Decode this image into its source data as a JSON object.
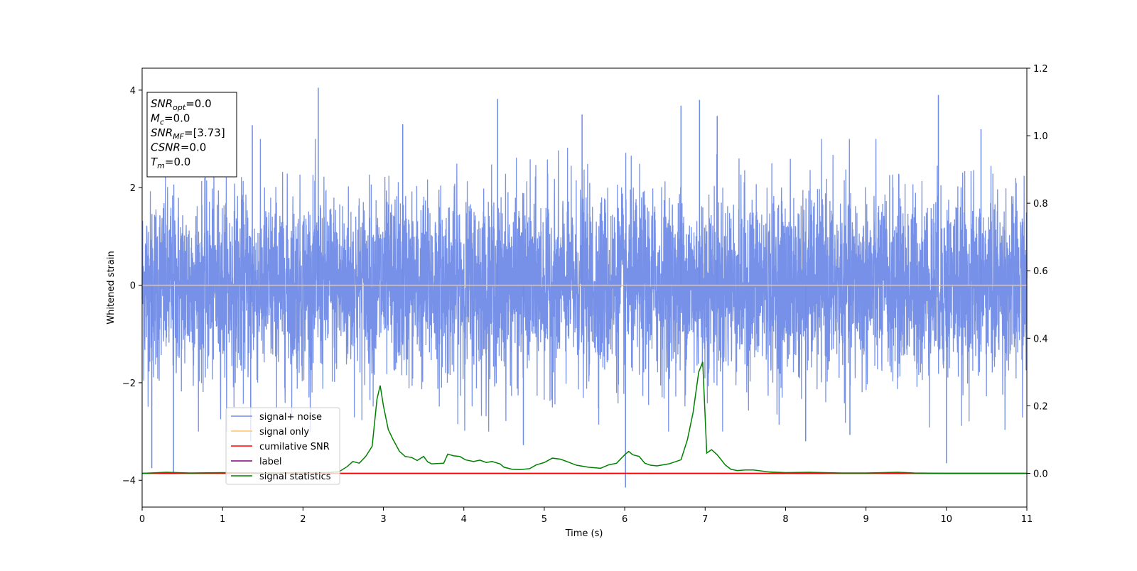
{
  "chart_data": {
    "type": "line",
    "xlabel": "Time (s)",
    "ylabel_left": "Whitened strain",
    "xlim": [
      0,
      11
    ],
    "ylim_left": [
      -4.55,
      4.45
    ],
    "ylim_right": [
      -0.1,
      1.2
    ],
    "x_ticks": [
      "0",
      "1",
      "2",
      "3",
      "4",
      "5",
      "6",
      "7",
      "8",
      "9",
      "10",
      "11"
    ],
    "y_ticks_left": [
      "-4",
      "-2",
      "0",
      "2",
      "4"
    ],
    "y_ticks_right": [
      "0.0",
      "0.2",
      "0.4",
      "0.6",
      "0.8",
      "1.0",
      "1.2"
    ],
    "grid": false,
    "legend_position": "lower-left",
    "info_box": [
      {
        "sym": "SNR",
        "sub": "opt",
        "rest": "=0.0"
      },
      {
        "sym": "M",
        "sub": "c",
        "rest": "=0.0"
      },
      {
        "sym": "SNR",
        "sub": "MF",
        "rest": "=[3.73]"
      },
      {
        "sym": "CSNR",
        "sub": "",
        "rest": "=0.0"
      },
      {
        "sym": "T",
        "sub": "m",
        "rest": "=0.0"
      }
    ],
    "series": [
      {
        "name": "signal+ noise",
        "axis": "left",
        "color": "#6f8be6",
        "style": "noise",
        "envelope_std": 0.95,
        "spikes": [
          {
            "x": 0.12,
            "y": -3.75
          },
          {
            "x": 0.39,
            "y": -3.85
          },
          {
            "x": 2.19,
            "y": 4.05
          },
          {
            "x": 4.42,
            "y": 3.82
          },
          {
            "x": 5.47,
            "y": 3.5
          },
          {
            "x": 6.01,
            "y": -4.15
          },
          {
            "x": 6.7,
            "y": 3.68
          },
          {
            "x": 6.93,
            "y": 3.8
          },
          {
            "x": 7.15,
            "y": 3.47
          },
          {
            "x": 9.9,
            "y": 3.9
          },
          {
            "x": 10.0,
            "y": -3.65
          },
          {
            "x": 10.43,
            "y": 3.2
          },
          {
            "x": 8.25,
            "y": -3.2
          },
          {
            "x": 4.74,
            "y": -3.28
          },
          {
            "x": 1.37,
            "y": 3.28
          },
          {
            "x": 3.24,
            "y": 3.3
          },
          {
            "x": 8.8,
            "y": -3.07
          },
          {
            "x": 1.35,
            "y": -3.2
          }
        ]
      },
      {
        "name": "signal only",
        "axis": "left",
        "color": "#ffc36e",
        "x": [
          0,
          11
        ],
        "y": [
          0,
          0
        ]
      },
      {
        "name": "cumilative SNR",
        "axis": "right",
        "color": "#ff0000",
        "x": [
          0,
          11
        ],
        "y": [
          0,
          0
        ]
      },
      {
        "name": "label",
        "axis": "right",
        "color": "#800080",
        "x": [
          0,
          11
        ],
        "y": [
          0,
          0
        ]
      },
      {
        "name": "signal statistics",
        "axis": "right",
        "color": "#008000",
        "x": [
          0,
          0.3,
          0.6,
          1.0,
          1.5,
          2.0,
          2.3,
          2.45,
          2.55,
          2.62,
          2.7,
          2.78,
          2.86,
          2.92,
          2.96,
          3.0,
          3.06,
          3.12,
          3.2,
          3.27,
          3.35,
          3.42,
          3.5,
          3.55,
          3.6,
          3.75,
          3.8,
          3.87,
          3.95,
          4.02,
          4.12,
          4.2,
          4.28,
          4.35,
          4.45,
          4.5,
          4.6,
          4.7,
          4.82,
          4.9,
          5.0,
          5.1,
          5.2,
          5.28,
          5.4,
          5.55,
          5.7,
          5.8,
          5.9,
          6.0,
          6.05,
          6.1,
          6.18,
          6.25,
          6.32,
          6.4,
          6.55,
          6.7,
          6.78,
          6.85,
          6.92,
          6.97,
          7.02,
          7.08,
          7.15,
          7.25,
          7.32,
          7.4,
          7.5,
          7.6,
          7.8,
          8.0,
          8.3,
          8.7,
          9.0,
          9.2,
          9.4,
          9.6,
          10.0,
          10.5,
          11.0
        ],
        "y": [
          0.0,
          0.003,
          0.001,
          0.002,
          0.001,
          0.002,
          0.002,
          0.005,
          0.02,
          0.035,
          0.03,
          0.05,
          0.08,
          0.22,
          0.26,
          0.2,
          0.13,
          0.1,
          0.065,
          0.05,
          0.047,
          0.038,
          0.05,
          0.034,
          0.028,
          0.03,
          0.057,
          0.052,
          0.05,
          0.04,
          0.035,
          0.039,
          0.032,
          0.035,
          0.028,
          0.018,
          0.012,
          0.011,
          0.014,
          0.025,
          0.032,
          0.045,
          0.042,
          0.035,
          0.024,
          0.018,
          0.015,
          0.025,
          0.03,
          0.055,
          0.065,
          0.055,
          0.05,
          0.03,
          0.024,
          0.022,
          0.028,
          0.04,
          0.1,
          0.18,
          0.3,
          0.33,
          0.06,
          0.07,
          0.055,
          0.025,
          0.012,
          0.008,
          0.01,
          0.01,
          0.004,
          0.002,
          0.003,
          0.001,
          0.001,
          0.002,
          0.003,
          0.001,
          0.0,
          0.0,
          0.0
        ]
      }
    ]
  }
}
